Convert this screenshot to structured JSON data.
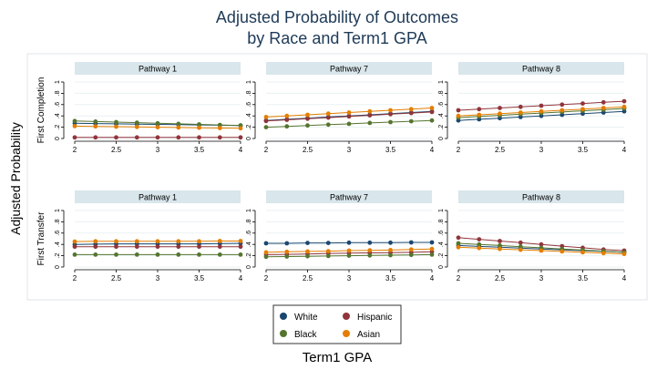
{
  "chart_data": {
    "type": "line",
    "title_lines": [
      "Adjusted Probability of Outcomes",
      "by Race and Term1 GPA"
    ],
    "ylabel": "Adjusted Probability",
    "xlabel": "Term1 GPA",
    "x": [
      2,
      2.25,
      2.5,
      2.75,
      3,
      3.25,
      3.5,
      3.75,
      4
    ],
    "x_ticks": [
      2,
      2.5,
      3,
      3.5,
      4
    ],
    "x_tick_labels": [
      "2",
      "2.5",
      "3",
      "3.5",
      "4"
    ],
    "y_ticks": [
      0,
      0.2,
      0.4,
      0.6,
      0.8,
      1
    ],
    "y_tick_labels": [
      "0",
      ".2",
      ".4",
      ".6",
      ".8",
      "1"
    ],
    "xlim": [
      2,
      4
    ],
    "ylim": [
      0,
      1
    ],
    "grid": true,
    "legend_position": "bottom",
    "legend": [
      {
        "name": "White",
        "color": "#1a476f"
      },
      {
        "name": "Hispanic",
        "color": "#90353b"
      },
      {
        "name": "Black",
        "color": "#55752f"
      },
      {
        "name": "Asian",
        "color": "#e37e00"
      }
    ],
    "row_labels": [
      "First Completion",
      "First Transfer"
    ],
    "panels": [
      {
        "row": 0,
        "col": 0,
        "title": "Pathway 1",
        "series": [
          {
            "name": "White",
            "values": [
              0.27,
              0.265,
              0.26,
              0.255,
              0.25,
              0.245,
              0.24,
              0.235,
              0.23
            ]
          },
          {
            "name": "Hispanic",
            "values": [
              0.02,
              0.02,
              0.02,
              0.02,
              0.02,
              0.02,
              0.02,
              0.02,
              0.02
            ]
          },
          {
            "name": "Black",
            "values": [
              0.31,
              0.3,
              0.29,
              0.28,
              0.27,
              0.26,
              0.25,
              0.24,
              0.23
            ]
          },
          {
            "name": "Asian",
            "values": [
              0.22,
              0.215,
              0.21,
              0.205,
              0.2,
              0.195,
              0.19,
              0.185,
              0.18
            ]
          }
        ]
      },
      {
        "row": 0,
        "col": 1,
        "title": "Pathway 7",
        "series": [
          {
            "name": "White",
            "values": [
              0.32,
              0.34,
              0.36,
              0.38,
              0.4,
              0.42,
              0.44,
              0.46,
              0.48
            ]
          },
          {
            "name": "Hispanic",
            "values": [
              0.31,
              0.33,
              0.35,
              0.37,
              0.39,
              0.41,
              0.43,
              0.45,
              0.47
            ]
          },
          {
            "name": "Black",
            "values": [
              0.2,
              0.215,
              0.23,
              0.245,
              0.26,
              0.275,
              0.29,
              0.305,
              0.32
            ]
          },
          {
            "name": "Asian",
            "values": [
              0.38,
              0.4,
              0.42,
              0.44,
              0.46,
              0.48,
              0.5,
              0.52,
              0.54
            ]
          }
        ]
      },
      {
        "row": 0,
        "col": 2,
        "title": "Pathway 8",
        "series": [
          {
            "name": "White",
            "values": [
              0.32,
              0.34,
              0.36,
              0.38,
              0.4,
              0.42,
              0.44,
              0.46,
              0.48
            ]
          },
          {
            "name": "Hispanic",
            "values": [
              0.5,
              0.52,
              0.54,
              0.56,
              0.58,
              0.6,
              0.62,
              0.64,
              0.66
            ]
          },
          {
            "name": "Black",
            "values": [
              0.37,
              0.39,
              0.41,
              0.43,
              0.45,
              0.47,
              0.49,
              0.51,
              0.53
            ]
          },
          {
            "name": "Asian",
            "values": [
              0.4,
              0.42,
              0.44,
              0.46,
              0.48,
              0.5,
              0.52,
              0.54,
              0.56
            ]
          }
        ]
      },
      {
        "row": 1,
        "col": 0,
        "title": "Pathway 1",
        "series": [
          {
            "name": "White",
            "values": [
              0.4,
              0.405,
              0.41,
              0.41,
              0.41,
              0.41,
              0.41,
              0.415,
              0.42
            ]
          },
          {
            "name": "Hispanic",
            "values": [
              0.36,
              0.36,
              0.36,
              0.36,
              0.36,
              0.36,
              0.36,
              0.36,
              0.36
            ]
          },
          {
            "name": "Black",
            "values": [
              0.22,
              0.22,
              0.22,
              0.22,
              0.22,
              0.22,
              0.22,
              0.22,
              0.22
            ]
          },
          {
            "name": "Asian",
            "values": [
              0.45,
              0.455,
              0.455,
              0.455,
              0.455,
              0.455,
              0.455,
              0.46,
              0.46
            ]
          }
        ]
      },
      {
        "row": 1,
        "col": 1,
        "title": "Pathway 7",
        "series": [
          {
            "name": "White",
            "values": [
              0.42,
              0.42,
              0.425,
              0.425,
              0.43,
              0.43,
              0.43,
              0.435,
              0.435
            ]
          },
          {
            "name": "Hispanic",
            "values": [
              0.22,
              0.225,
              0.23,
              0.24,
              0.245,
              0.25,
              0.255,
              0.26,
              0.27
            ]
          },
          {
            "name": "Black",
            "values": [
              0.18,
              0.185,
              0.19,
              0.195,
              0.2,
              0.205,
              0.21,
              0.215,
              0.22
            ]
          },
          {
            "name": "Asian",
            "values": [
              0.26,
              0.27,
              0.275,
              0.28,
              0.29,
              0.295,
              0.3,
              0.31,
              0.32
            ]
          }
        ]
      },
      {
        "row": 1,
        "col": 2,
        "title": "Pathway 8",
        "series": [
          {
            "name": "White",
            "values": [
              0.38,
              0.365,
              0.35,
              0.335,
              0.32,
              0.305,
              0.29,
              0.275,
              0.26
            ]
          },
          {
            "name": "Hispanic",
            "values": [
              0.52,
              0.49,
              0.46,
              0.43,
              0.4,
              0.37,
              0.34,
              0.31,
              0.29
            ]
          },
          {
            "name": "Black",
            "values": [
              0.42,
              0.4,
              0.38,
              0.36,
              0.34,
              0.32,
              0.3,
              0.28,
              0.26
            ]
          },
          {
            "name": "Asian",
            "values": [
              0.35,
              0.335,
              0.32,
              0.305,
              0.29,
              0.275,
              0.26,
              0.245,
              0.23
            ]
          }
        ]
      }
    ]
  }
}
